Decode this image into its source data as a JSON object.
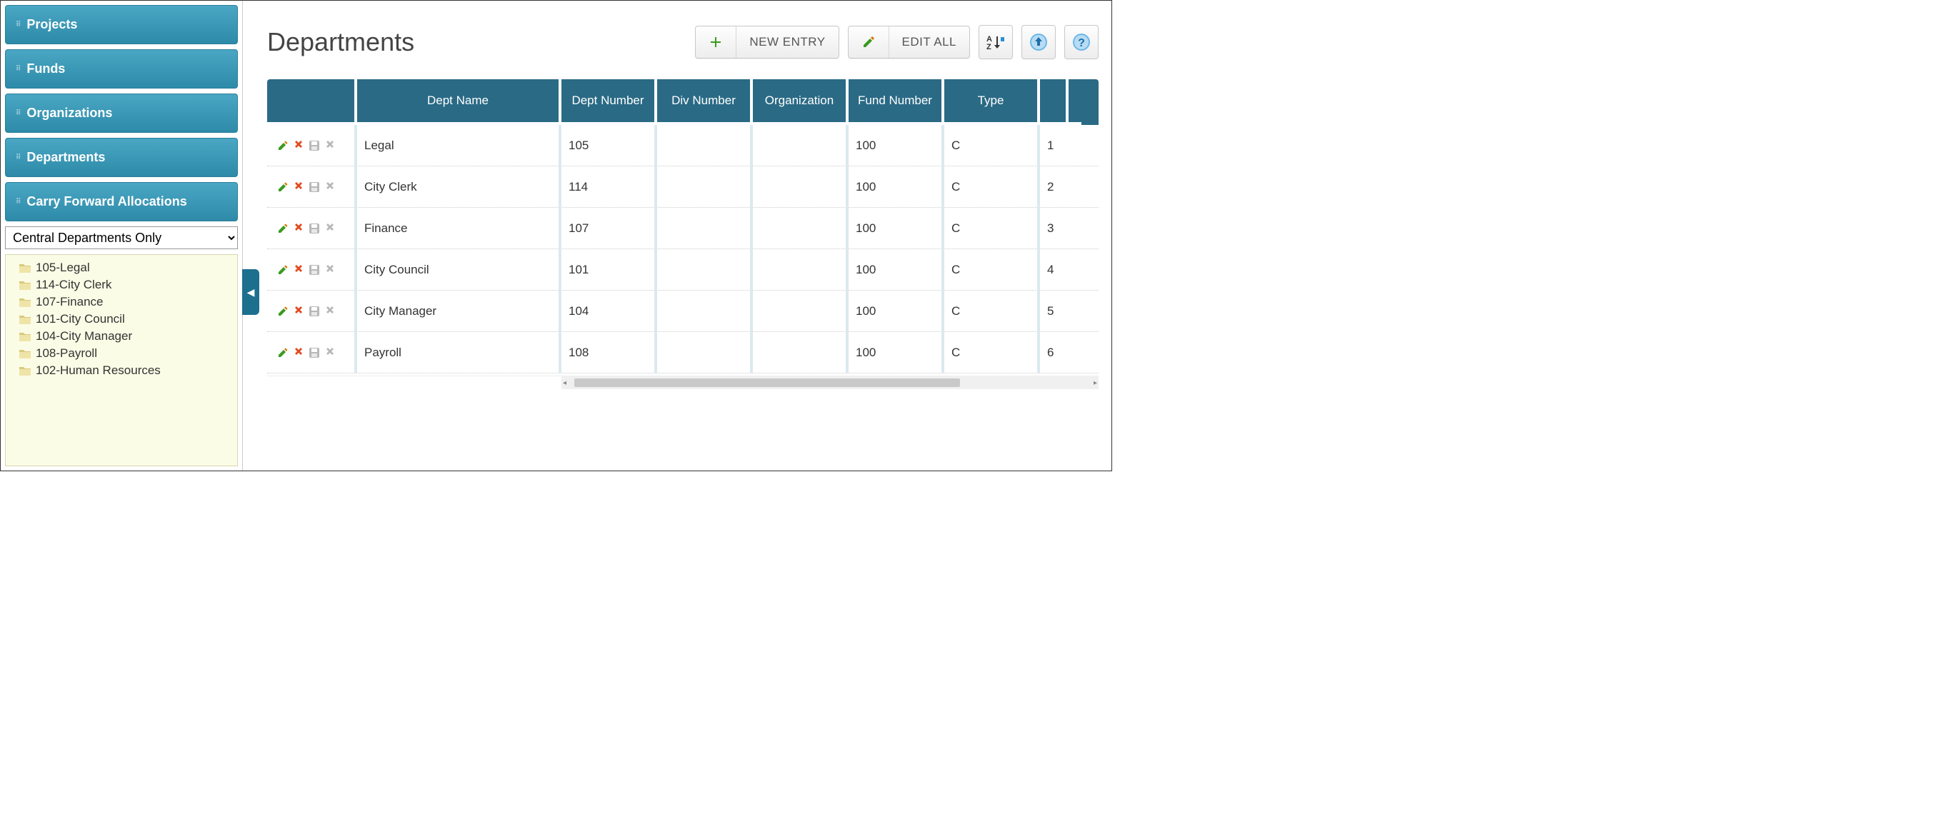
{
  "sidebar": {
    "nav": [
      {
        "label": "Projects"
      },
      {
        "label": "Funds"
      },
      {
        "label": "Organizations"
      },
      {
        "label": "Departments"
      },
      {
        "label": "Carry Forward Allocations"
      }
    ],
    "filter_selected": "Central Departments Only",
    "tree": [
      {
        "label": "105-Legal"
      },
      {
        "label": "114-City Clerk"
      },
      {
        "label": "107-Finance"
      },
      {
        "label": "101-City Council"
      },
      {
        "label": "104-City Manager"
      },
      {
        "label": "108-Payroll"
      },
      {
        "label": "102-Human Resources"
      }
    ]
  },
  "header": {
    "title": "Departments",
    "new_entry_label": "NEW ENTRY",
    "edit_all_label": "EDIT ALL"
  },
  "table": {
    "columns": [
      "",
      "Dept Name",
      "Dept Number",
      "Div Number",
      "Organization",
      "Fund Number",
      "Type",
      ""
    ],
    "rows": [
      {
        "dept_name": "Legal",
        "dept_number": "105",
        "div_number": "",
        "organization": "",
        "fund_number": "100",
        "type": "C",
        "idx": "1"
      },
      {
        "dept_name": "City Clerk",
        "dept_number": "114",
        "div_number": "",
        "organization": "",
        "fund_number": "100",
        "type": "C",
        "idx": "2"
      },
      {
        "dept_name": "Finance",
        "dept_number": "107",
        "div_number": "",
        "organization": "",
        "fund_number": "100",
        "type": "C",
        "idx": "3"
      },
      {
        "dept_name": "City Council",
        "dept_number": "101",
        "div_number": "",
        "organization": "",
        "fund_number": "100",
        "type": "C",
        "idx": "4"
      },
      {
        "dept_name": "City Manager",
        "dept_number": "104",
        "div_number": "",
        "organization": "",
        "fund_number": "100",
        "type": "C",
        "idx": "5"
      },
      {
        "dept_name": "Payroll",
        "dept_number": "108",
        "div_number": "",
        "organization": "",
        "fund_number": "100",
        "type": "C",
        "idx": "6"
      }
    ]
  },
  "colors": {
    "nav_bg_top": "#4aa7c4",
    "nav_bg_bottom": "#2d8aa8",
    "table_header_bg": "#2a6a85",
    "tree_bg": "#fbfce6",
    "col_divider": "#dbe9f0"
  }
}
